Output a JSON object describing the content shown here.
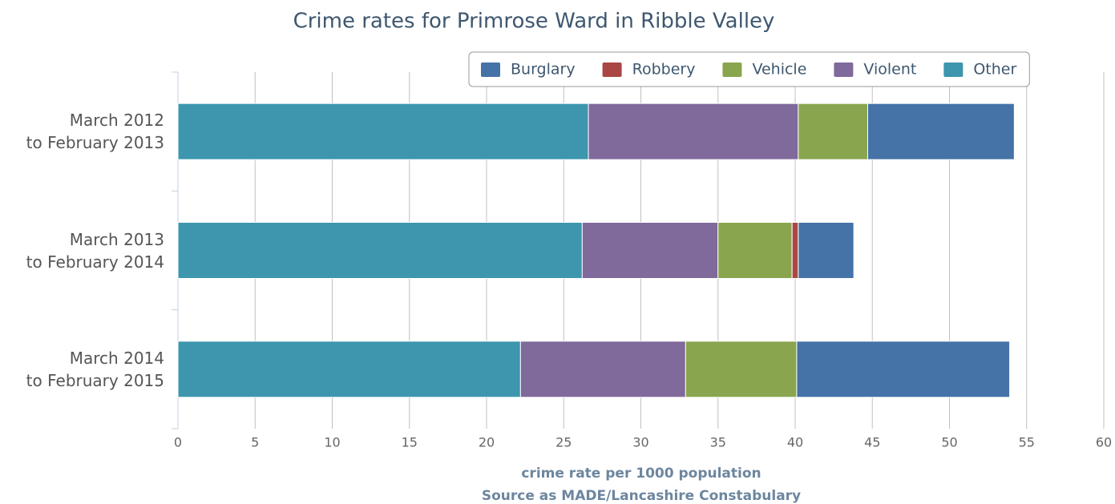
{
  "chart_data": {
    "type": "stacked-bar-horizontal",
    "title": "Crime rates for Primrose Ward in Ribble Valley",
    "categories": [
      "March 2012\nto February 2013",
      "March 2013\nto February 2014",
      "March 2014\nto February 2015"
    ],
    "series": [
      {
        "name": "Burglary",
        "color": "#4572a7",
        "values": [
          9.5,
          3.6,
          13.8
        ]
      },
      {
        "name": "Robbery",
        "color": "#aa4643",
        "values": [
          0,
          0.4,
          0
        ]
      },
      {
        "name": "Vehicle",
        "color": "#89a54e",
        "values": [
          4.5,
          4.8,
          7.2
        ]
      },
      {
        "name": "Violent",
        "color": "#80699b",
        "values": [
          13.6,
          8.8,
          10.7
        ]
      },
      {
        "name": "Other",
        "color": "#3d96ae",
        "values": [
          26.6,
          26.2,
          22.2
        ]
      }
    ],
    "xlim": [
      0,
      60
    ],
    "xticks": [
      0,
      5,
      10,
      15,
      20,
      25,
      30,
      35,
      40,
      45,
      50,
      55,
      60
    ],
    "xlabel": "crime rate per 1000 population",
    "source": "Source as MADE/Lancashire Constabulary",
    "grid": true,
    "legend": "top-right"
  }
}
